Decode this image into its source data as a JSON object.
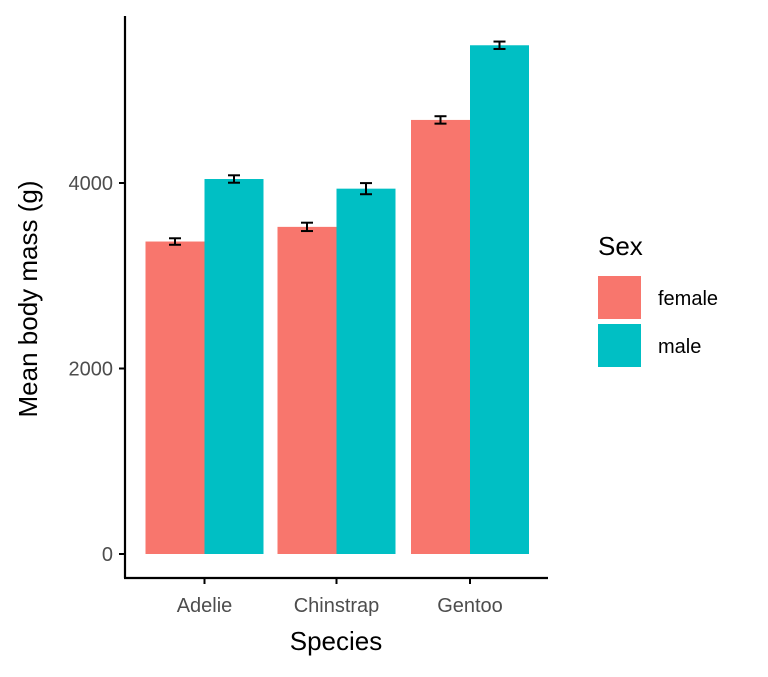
{
  "chart_data": {
    "type": "bar",
    "title": "",
    "xlabel": "Species",
    "ylabel": "Mean body mass (g)",
    "categories": [
      "Adelie",
      "Chinstrap",
      "Gentoo"
    ],
    "ylim": [
      0,
      5700
    ],
    "yticks": [
      0,
      2000,
      4000
    ],
    "grid": false,
    "legend": {
      "title": "Sex",
      "position": "right"
    },
    "series": [
      {
        "name": "female",
        "color": "#F8766D",
        "values": [
          3369,
          3527,
          4680
        ],
        "error": [
          35,
          45,
          40
        ]
      },
      {
        "name": "male",
        "color": "#00BFC4",
        "values": [
          4043,
          3939,
          5485
        ],
        "error": [
          40,
          60,
          40
        ]
      }
    ]
  }
}
